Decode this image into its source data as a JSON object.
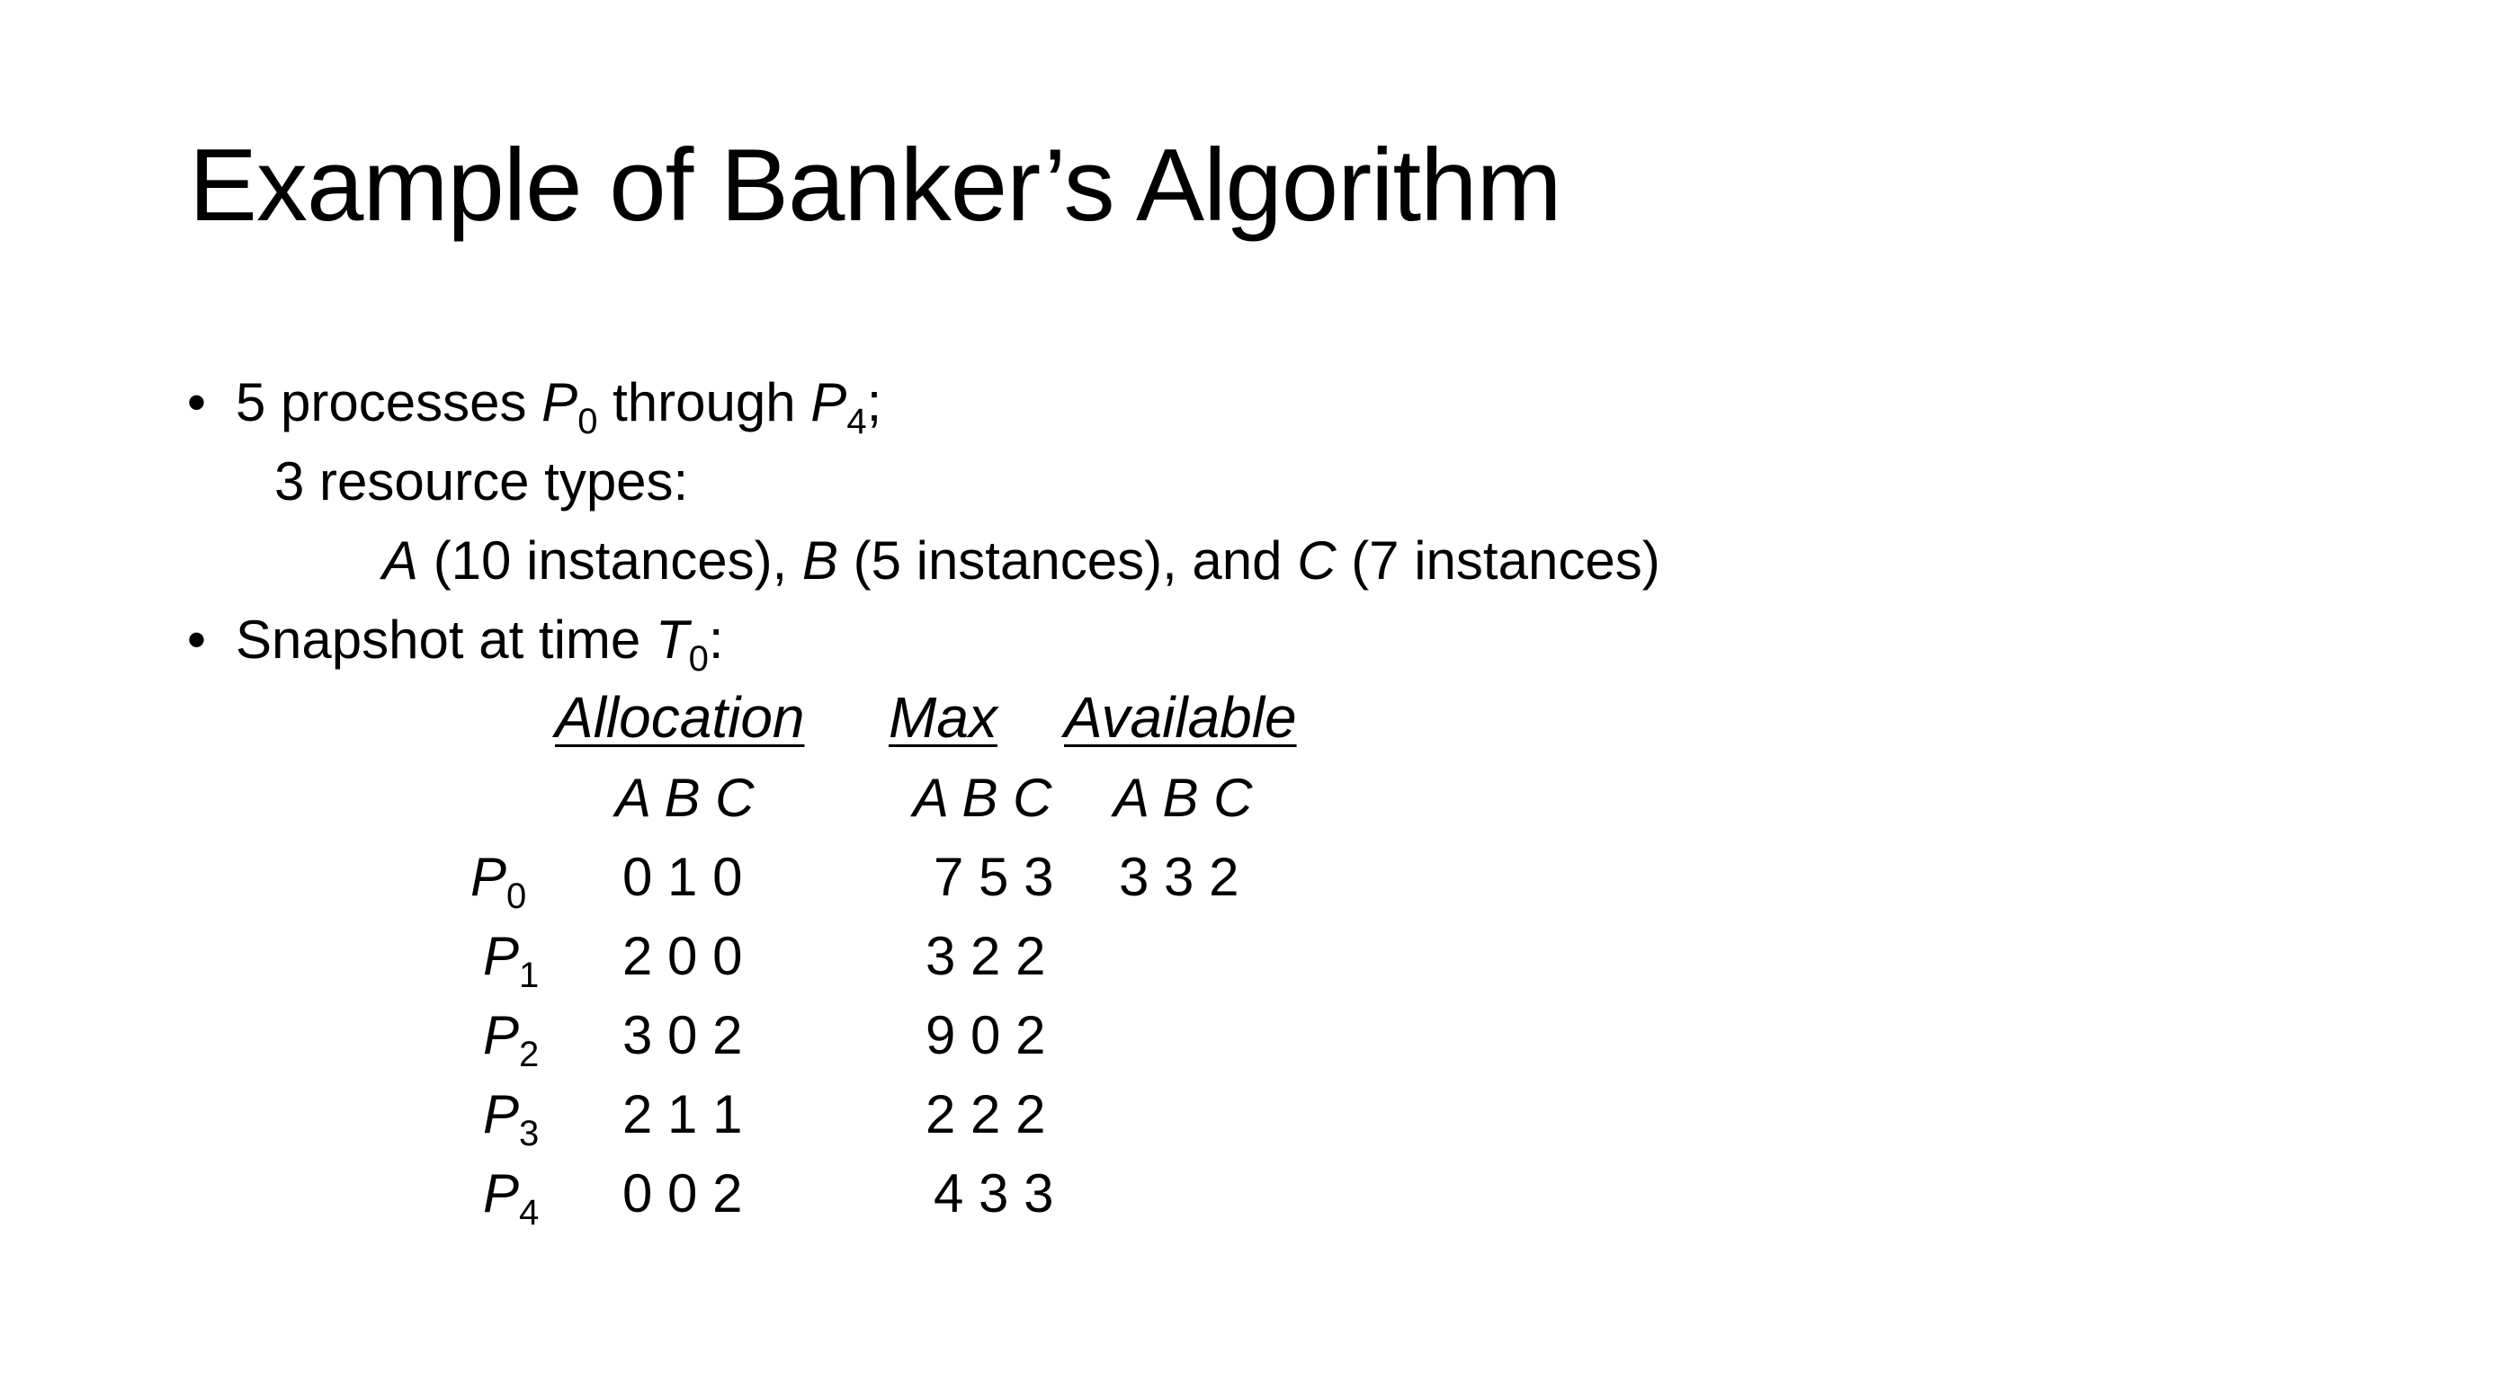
{
  "title": "Example of Banker’s Algorithm",
  "bullets": {
    "b1_prefix": "5 processes ",
    "b1_p": "P",
    "b1_p_sub": "0",
    "b1_mid": " through ",
    "b1_p2": "P",
    "b1_p2_sub": "4",
    "b1_end": ";",
    "resource_line": "3 resource types:",
    "res_a": "A",
    "res_a_text": " (10 instances),  ",
    "res_b": "B",
    "res_b_text": " (5 instances), and ",
    "res_c": "C",
    "res_c_text": " (7 instances)",
    "b2_prefix": "Snapshot at time ",
    "b2_t": "T",
    "b2_t_sub": "0",
    "b2_end": ":"
  },
  "table": {
    "headers": [
      "Allocation",
      "Max",
      "Available"
    ],
    "subheaders": [
      "A B C",
      "A B C",
      "A B C"
    ],
    "rows": [
      {
        "proc": "P",
        "sub": "0",
        "allocation": "0 1 0",
        "max": "7 5 3",
        "available": "3 3 2"
      },
      {
        "proc": "P",
        "sub": "1",
        "allocation": "2 0 0",
        "max": "3 2 2",
        "available": ""
      },
      {
        "proc": "P",
        "sub": "2",
        "allocation": "3 0 2",
        "max": "9 0 2",
        "available": ""
      },
      {
        "proc": "P",
        "sub": "3",
        "allocation": "2 1 1",
        "max": "2 2 2",
        "available": ""
      },
      {
        "proc": "P",
        "sub": "4",
        "allocation": "0 0 2",
        "max": "4 3 3",
        "available": ""
      }
    ]
  },
  "bullet_glyph": "•"
}
